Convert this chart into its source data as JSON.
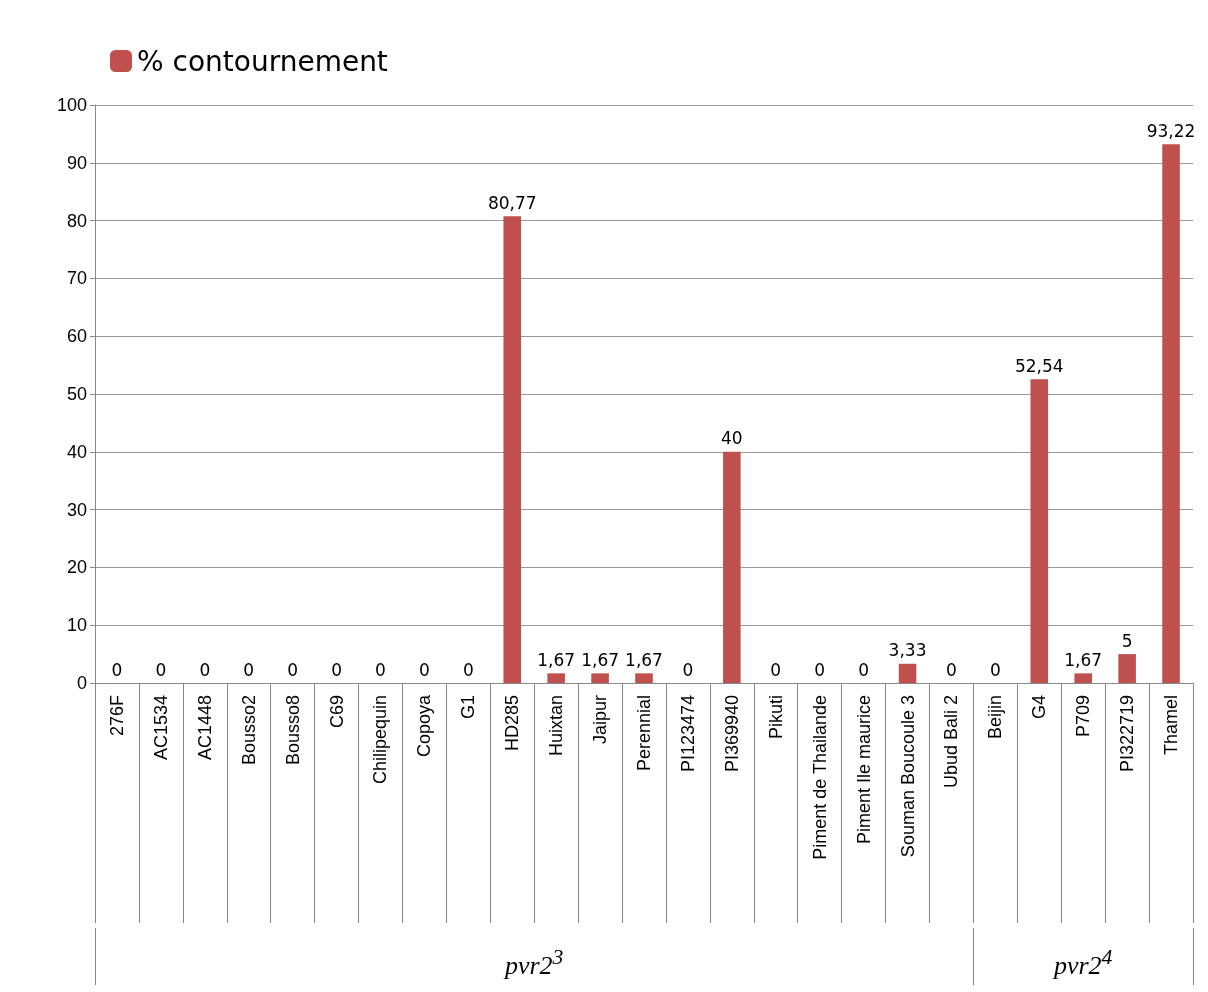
{
  "chart_data": {
    "type": "bar",
    "categories": [
      "276F",
      "AC1534",
      "AC1448",
      "Bousso2",
      "Bousso8",
      "C69",
      "Chilipequin",
      "Copoya",
      "G1",
      "HD285",
      "Huixtan",
      "Jaipur",
      "Perennial",
      "PI123474",
      "PI369940",
      "Pikuti",
      "Piment de Thailande",
      "Piment Ile maurice",
      "Souman Boucoule 3",
      "Ubud Bali 2",
      "Beijin",
      "G4",
      "P709",
      "PI322719",
      "Thamel"
    ],
    "series": [
      {
        "name": "% contournement",
        "color": "#c0504d",
        "values": [
          0,
          0,
          0,
          0,
          0,
          0,
          0,
          0,
          0,
          80.77,
          1.67,
          1.67,
          1.67,
          0,
          40,
          0,
          0,
          0,
          3.33,
          0,
          0,
          52.54,
          1.67,
          5,
          93.22
        ],
        "value_labels": [
          "0",
          "0",
          "0",
          "0",
          "0",
          "0",
          "0",
          "0",
          "0",
          "80,77",
          "1,67",
          "1,67",
          "1,67",
          "0",
          "40",
          "0",
          "0",
          "0",
          "3,33",
          "0",
          "0",
          "52,54",
          "1,67",
          "5",
          "93,22"
        ]
      }
    ],
    "annotations": [
      "pvr2$^{3}$",
      "pvr2$^{4}$"
    ],
    "ylim": [
      0,
      100
    ],
    "yticks": [
      0,
      10,
      20,
      30,
      40,
      50,
      60,
      70,
      80,
      90,
      100
    ],
    "grid": "y",
    "legend": "top left"
  }
}
